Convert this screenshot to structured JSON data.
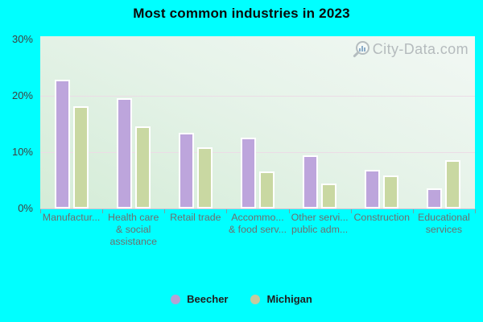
{
  "title": "Most common industries in 2023",
  "watermark": {
    "text": "City-Data.com"
  },
  "colors": {
    "page_bg": "#00ffff",
    "beecher_bar": "#bda5dc",
    "michigan_bar": "#c9d8a2",
    "beecher_legend": "#b4a2d4",
    "michigan_legend": "#c4c99f",
    "bar_border": "#ffffff",
    "gridline": "#ecdce6",
    "axis_line": "#c9c0d4",
    "y_label_text": "#3f3f3f",
    "x_label_text": "#6e6e6e",
    "watermark_text": "#b2b8bb"
  },
  "chart_data": {
    "type": "bar",
    "title": "Most common industries in 2023",
    "categories": [
      {
        "lines": [
          "Manufactur..."
        ]
      },
      {
        "lines": [
          "Health care",
          "& social",
          "assistance"
        ]
      },
      {
        "lines": [
          "Retail trade"
        ]
      },
      {
        "lines": [
          "Accommo...",
          "& food serv..."
        ]
      },
      {
        "lines": [
          "Other servi...",
          "public adm..."
        ]
      },
      {
        "lines": [
          "Construction"
        ]
      },
      {
        "lines": [
          "Educational",
          "services"
        ]
      }
    ],
    "series": [
      {
        "name": "Beecher",
        "color": "#bda5dc",
        "legend_color": "#b4a2d4",
        "values": [
          22.8,
          19.5,
          13.4,
          12.5,
          9.4,
          6.8,
          3.5
        ]
      },
      {
        "name": "Michigan",
        "color": "#c9d8a2",
        "legend_color": "#c4c99f",
        "values": [
          18.1,
          14.5,
          10.8,
          6.5,
          4.4,
          5.8,
          8.6
        ]
      }
    ],
    "ylim": [
      0,
      30
    ],
    "y_ticks": [
      30,
      20,
      10,
      0
    ],
    "y_tick_labels": [
      "30%",
      "20%",
      "10%",
      "0%"
    ],
    "grid_values": [
      10,
      20
    ],
    "legend_position": "bottom",
    "unit": "%"
  }
}
